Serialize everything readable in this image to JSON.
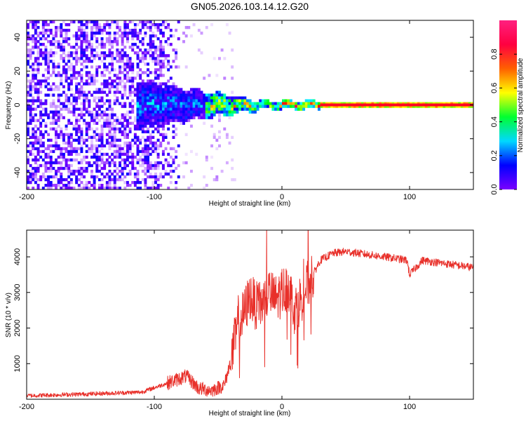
{
  "title": "GN05.2026.103.14.12.G20",
  "chart_data": [
    {
      "type": "heatmap",
      "name": "spectrogram",
      "xlabel": "Height of straight line (km)",
      "ylabel": "Frequency (Hz)",
      "xlim": [
        -200,
        150
      ],
      "ylim": [
        -50,
        50
      ],
      "xticks": [
        -200,
        -100,
        0,
        100
      ],
      "yticks": [
        -40,
        -20,
        0,
        20,
        40
      ],
      "colorbar": {
        "label": "Normalized spectral amplitude",
        "range": [
          0,
          1
        ],
        "ticks": [
          "0.0",
          "0.2",
          "0.4",
          "0.6",
          "0.8"
        ],
        "tick_values": [
          0.0,
          0.2,
          0.4,
          0.6,
          0.8
        ],
        "colormap": [
          "#ffffff",
          "#7d00ff",
          "#0000ff",
          "#00ffff",
          "#00ff00",
          "#ffff00",
          "#ff0000",
          "#ff0080"
        ]
      },
      "features": {
        "noise_region_x": [
          -200,
          -80
        ],
        "carrier_line_x": [
          -90,
          150
        ],
        "carrier_frequency": 0
      }
    },
    {
      "type": "line",
      "name": "snr",
      "xlabel": "Height of straight line (km)",
      "ylabel": "SNR (10 * v/v)",
      "xlim": [
        -200,
        150
      ],
      "ylim": [
        0,
        4750
      ],
      "xticks": [
        -200,
        -100,
        0,
        100
      ],
      "yticks": [
        1000,
        2000,
        3000,
        4000
      ],
      "series": [
        {
          "name": "SNR",
          "color": "#e8302a",
          "x": [
            -200,
            -150,
            -110,
            -90,
            -75,
            -65,
            -55,
            -45,
            -40,
            -35,
            -30,
            -25,
            -20,
            -15,
            -10,
            -5,
            0,
            5,
            10,
            20,
            30,
            40,
            50,
            60,
            70,
            80,
            90,
            98,
            100,
            110,
            120,
            130,
            140,
            150
          ],
          "y": [
            100,
            150,
            200,
            450,
            650,
            300,
            250,
            400,
            1100,
            2000,
            2400,
            2900,
            2600,
            2700,
            3000,
            2800,
            3000,
            3200,
            2500,
            3200,
            3900,
            4100,
            4150,
            4100,
            4050,
            4000,
            3950,
            3900,
            3500,
            3900,
            3850,
            3800,
            3750,
            3700
          ]
        }
      ]
    }
  ]
}
